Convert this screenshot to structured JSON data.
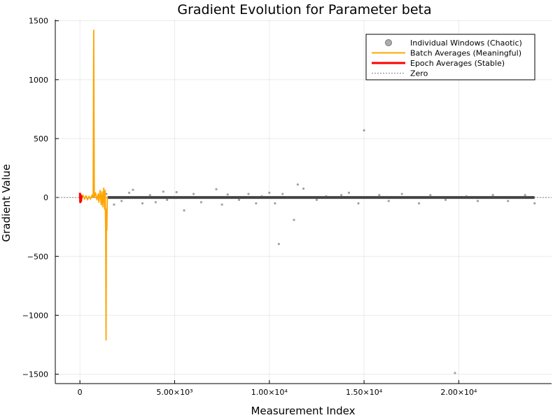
{
  "chart_data": {
    "type": "line",
    "title": "Gradient Evolution for Parameter beta",
    "xlabel": "Measurement Index",
    "ylabel": "Gradient Value",
    "xlim": [
      -1300,
      24900
    ],
    "ylim": [
      -1580,
      1510
    ],
    "x_ticks": [
      {
        "value": 0,
        "label": "0"
      },
      {
        "value": 5000,
        "label": "5.00×10³"
      },
      {
        "value": 10000,
        "label": "1.00×10⁴"
      },
      {
        "value": 15000,
        "label": "1.50×10⁴"
      },
      {
        "value": 20000,
        "label": "2.00×10⁴"
      }
    ],
    "y_ticks": [
      {
        "value": 1500,
        "label": "1500"
      },
      {
        "value": 1000,
        "label": "1000"
      },
      {
        "value": 500,
        "label": "500"
      },
      {
        "value": 0,
        "label": "0"
      },
      {
        "value": -500,
        "label": "−500"
      },
      {
        "value": -1000,
        "label": "−1000"
      },
      {
        "value": -1500,
        "label": "−1500"
      }
    ],
    "grid": true,
    "legend_position": "top-right",
    "series": [
      {
        "name": "Individual Windows (Chaotic)",
        "kind": "scatter",
        "color": "#555555",
        "x": [
          1400,
          1800,
          2200,
          2600,
          2800,
          3300,
          3700,
          4000,
          4400,
          4600,
          5100,
          5500,
          6000,
          6400,
          7200,
          7500,
          7800,
          8400,
          8900,
          9300,
          9600,
          10000,
          10300,
          10500,
          10700,
          11300,
          11500,
          11800,
          12500,
          13000,
          13800,
          14200,
          14700,
          15000,
          15800,
          16300,
          17000,
          17900,
          18500,
          19300,
          19800,
          20400,
          21000,
          21800,
          22600,
          23500,
          24000
        ],
        "y": [
          30,
          -60,
          -30,
          40,
          65,
          -50,
          20,
          -40,
          50,
          -20,
          45,
          -110,
          30,
          -40,
          70,
          -60,
          25,
          -20,
          30,
          -50,
          10,
          40,
          -50,
          -395,
          30,
          -190,
          110,
          75,
          -20,
          10,
          20,
          40,
          -50,
          570,
          20,
          -30,
          30,
          -50,
          20,
          -20,
          -1490,
          10,
          -30,
          20,
          -30,
          20,
          -50
        ]
      },
      {
        "name": "Batch Averages (Meaningful)",
        "kind": "line",
        "color": "#FFA500",
        "x": [
          0,
          80,
          160,
          240,
          320,
          400,
          480,
          560,
          640,
          700,
          730,
          760,
          820,
          900,
          960,
          1000,
          1060,
          1120,
          1160,
          1200,
          1260,
          1300,
          1330,
          1360,
          1380,
          1400,
          1420,
          1450
        ],
        "y": [
          0,
          -20,
          20,
          -15,
          15,
          -20,
          10,
          -15,
          20,
          0,
          1420,
          0,
          40,
          -20,
          30,
          -40,
          60,
          -60,
          50,
          -80,
          80,
          -100,
          60,
          -300,
          -1210,
          -100,
          -280,
          10
        ]
      },
      {
        "name": "Epoch Averages (Stable)",
        "kind": "line",
        "color": "#FF0000",
        "x": [
          0,
          20,
          40,
          60,
          80,
          100
        ],
        "y": [
          40,
          -40,
          20,
          -30,
          10,
          0
        ]
      },
      {
        "name": "Zero",
        "kind": "hline",
        "color": "#808080",
        "y": [
          0
        ]
      }
    ]
  }
}
